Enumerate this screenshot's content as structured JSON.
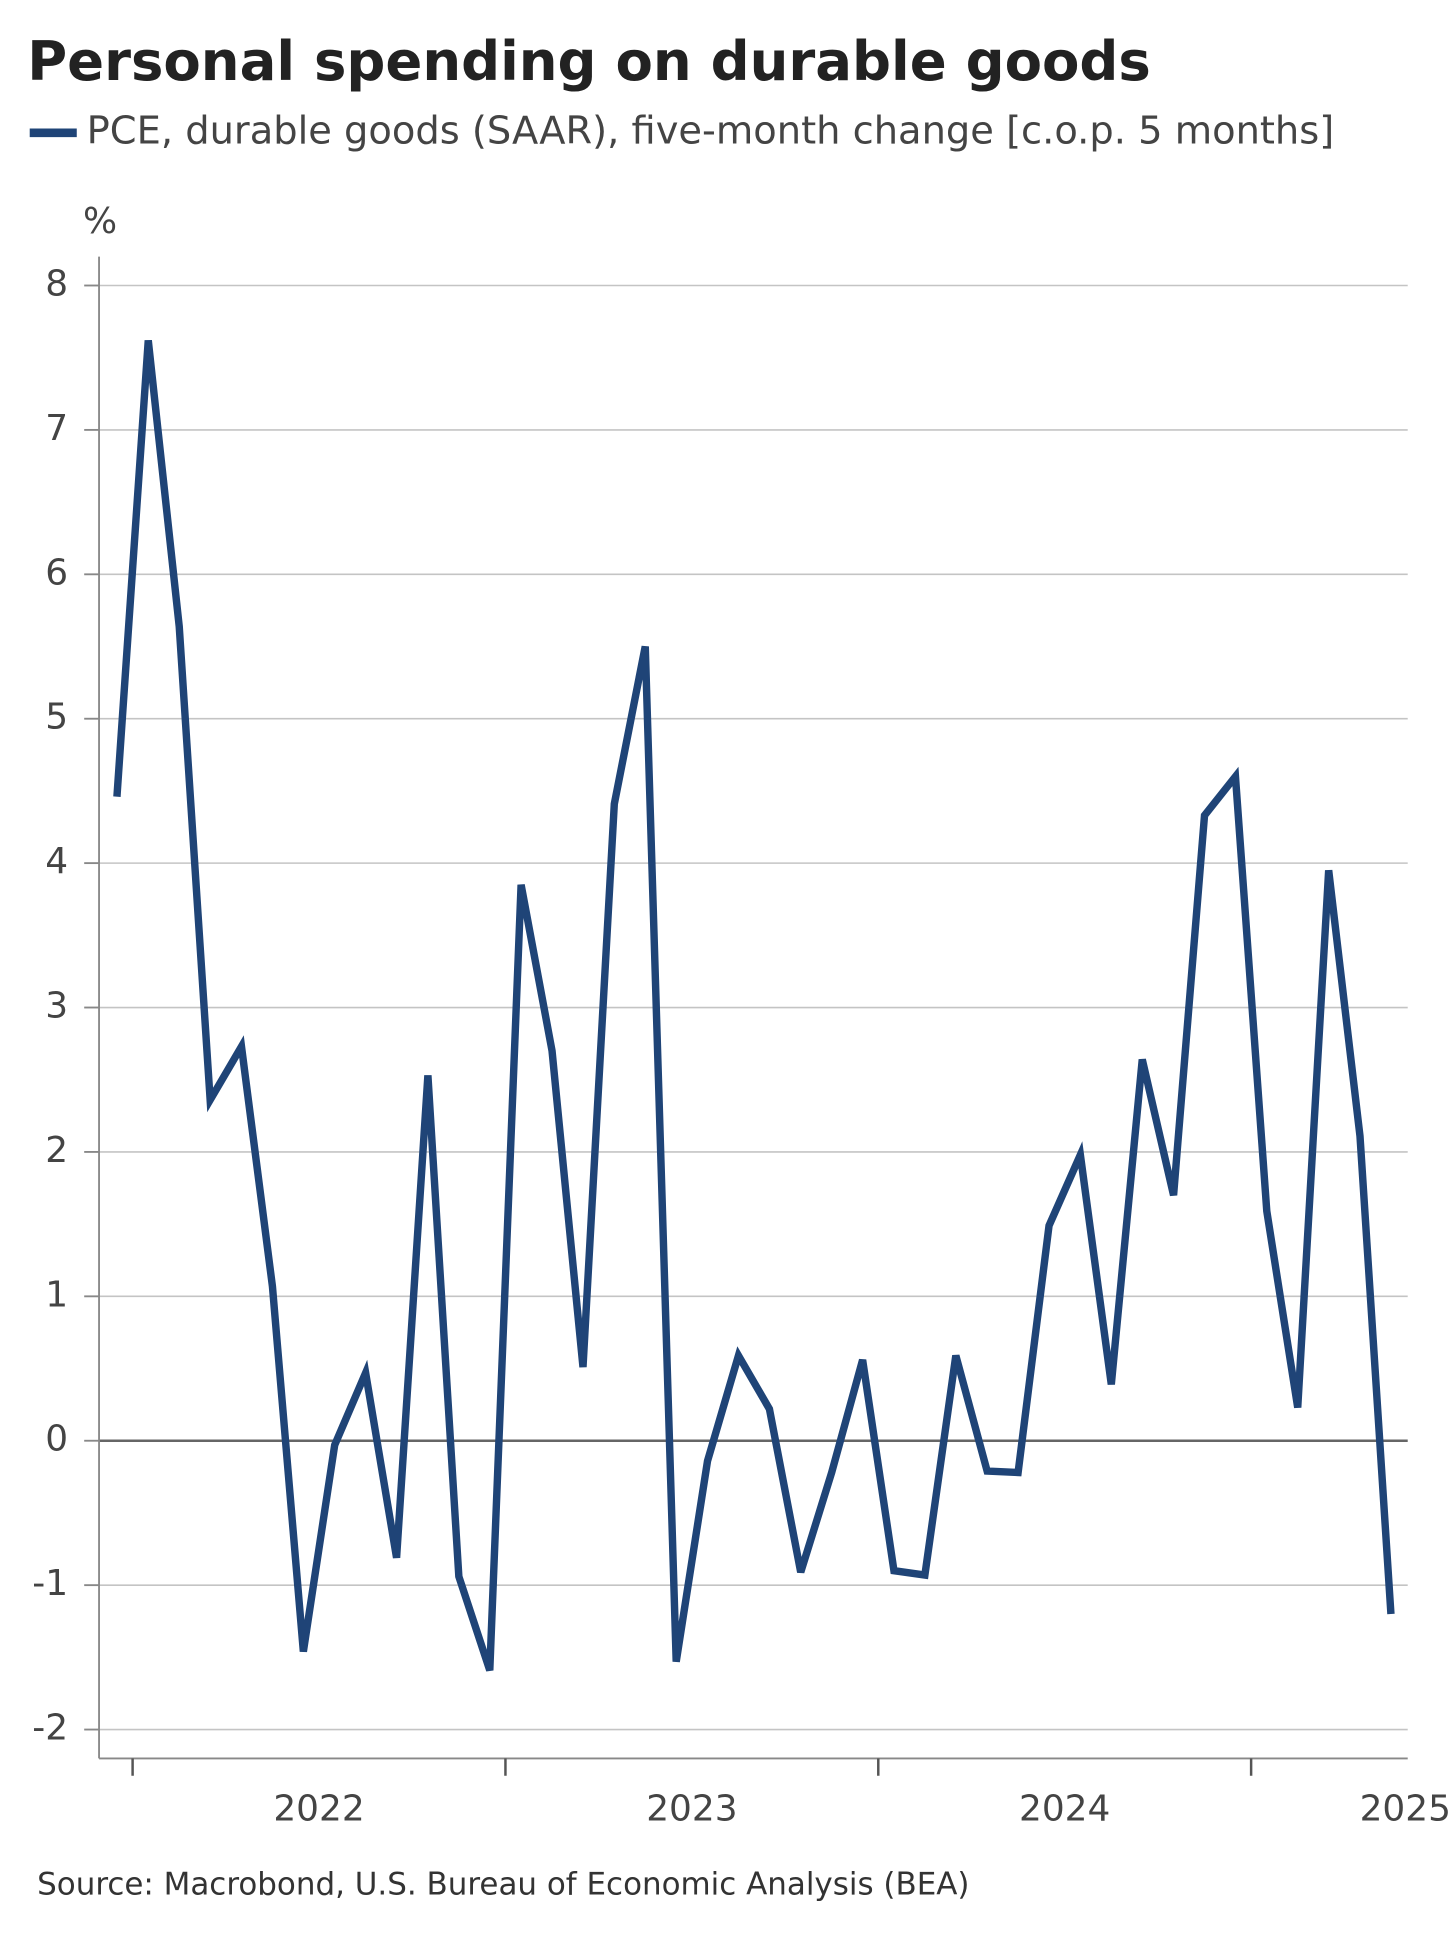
{
  "chart_data": {
    "type": "line",
    "title": "Personal spending on durable goods",
    "y_label": "%",
    "source": "Source: Macrobond, U.S. Bureau of Economic Analysis (BEA)",
    "x": [
      2021.958,
      2022.042,
      2022.125,
      2022.208,
      2022.292,
      2022.375,
      2022.458,
      2022.542,
      2022.625,
      2022.708,
      2022.792,
      2022.875,
      2022.958,
      2023.042,
      2023.125,
      2023.208,
      2023.292,
      2023.375,
      2023.458,
      2023.542,
      2023.625,
      2023.708,
      2023.792,
      2023.875,
      2023.958,
      2024.042,
      2024.125,
      2024.208,
      2024.292,
      2024.375,
      2024.458,
      2024.542,
      2024.625,
      2024.708,
      2024.792,
      2024.875,
      2024.958,
      2025.042,
      2025.125,
      2025.208,
      2025.292,
      2025.375
    ],
    "series": [
      {
        "name": "PCE, durable goods (SAAR), five-month change [c.o.p. 5 months]",
        "color": "#1f4477",
        "values": [
          4.46,
          7.62,
          5.64,
          2.36,
          2.73,
          1.07,
          -1.46,
          -0.03,
          0.47,
          -0.81,
          2.53,
          -0.94,
          -1.59,
          3.85,
          2.7,
          0.51,
          4.41,
          5.5,
          -1.53,
          -0.14,
          0.59,
          0.22,
          -0.91,
          -0.22,
          0.56,
          -0.9,
          -0.93,
          0.59,
          -0.21,
          -0.22,
          1.49,
          1.98,
          0.39,
          2.64,
          1.7,
          4.33,
          4.6,
          1.59,
          0.23,
          3.95,
          2.11,
          -1.2
        ]
      }
    ],
    "xlim": [
      2021.91,
      2025.42
    ],
    "xticks": [
      2022,
      2023,
      2024,
      2025
    ],
    "ylim": [
      -2.2,
      8.2
    ],
    "yticks": [
      -2,
      -1,
      0,
      1,
      2,
      3,
      4,
      5,
      6,
      7,
      8
    ],
    "grid": true
  }
}
